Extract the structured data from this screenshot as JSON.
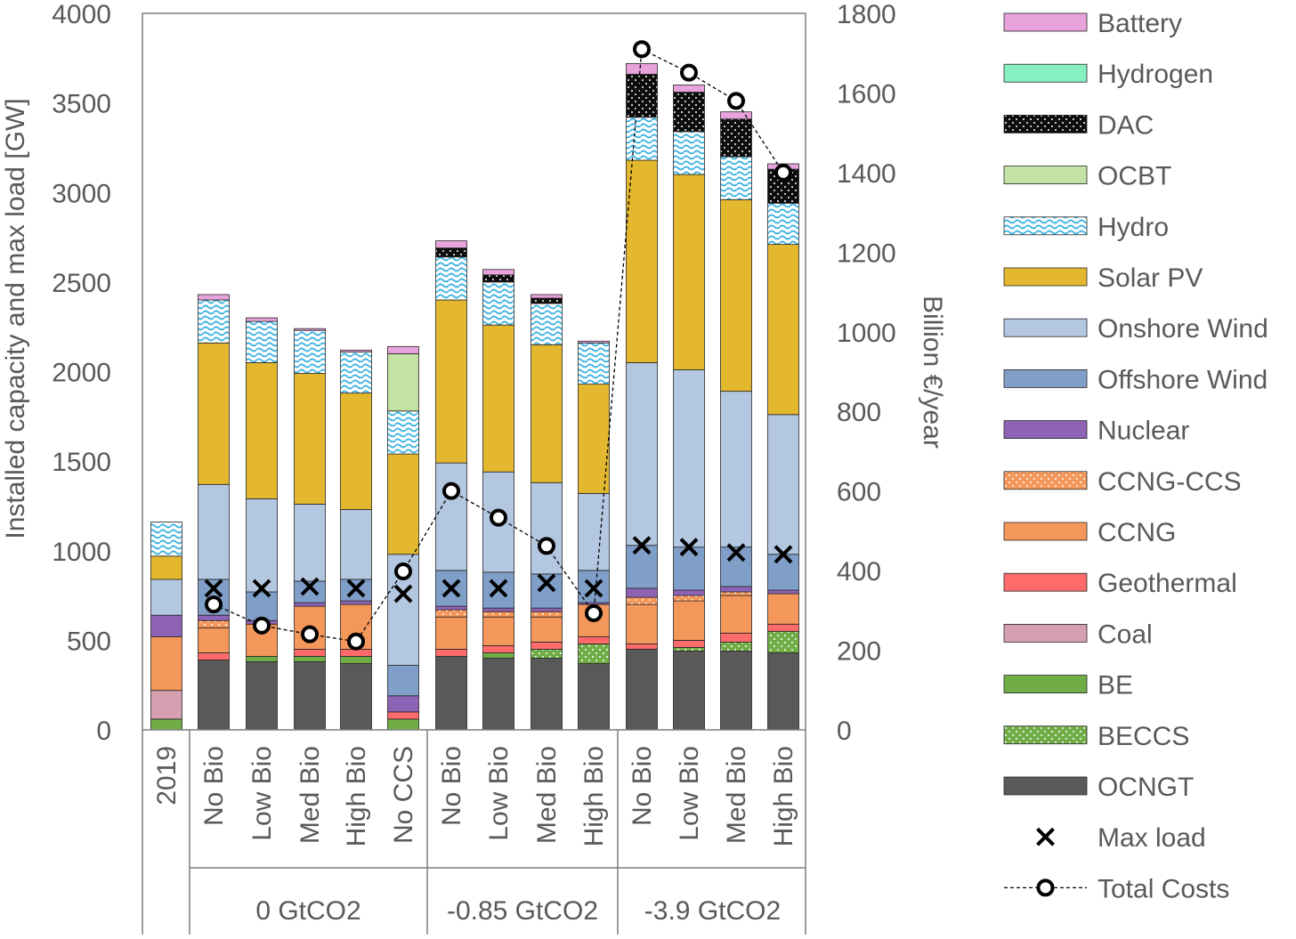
{
  "chart_data": {
    "type": "bar",
    "subtype": "stacked-bar-with-line-and-markers",
    "ylabel_left": "Installed capacity and max load [GW]",
    "ylabel_right": "Billion €/year",
    "ylim_left": [
      0,
      4000
    ],
    "ylim_right": [
      0,
      1800
    ],
    "yticks_left": [
      "0",
      "500",
      "1000",
      "1500",
      "2000",
      "2500",
      "3000",
      "3500",
      "4000"
    ],
    "yticks_right": [
      "0",
      "200",
      "400",
      "600",
      "800",
      "1000",
      "1200",
      "1400",
      "1600",
      "1800"
    ],
    "grid": false,
    "legend_position": "right",
    "categories": [
      "2019",
      "No Bio",
      "Low Bio",
      "Med Bio",
      "High Bio",
      "No CCS",
      "No Bio",
      "Low Bio",
      "Med Bio",
      "High Bio",
      "No Bio",
      "Low Bio",
      "Med Bio",
      "High Bio"
    ],
    "groups": [
      {
        "label": "0 GtCO2",
        "start": 1,
        "end": 5
      },
      {
        "label": "-0.85 GtCO2",
        "start": 6,
        "end": 9
      },
      {
        "label": "-3.9 GtCO2",
        "start": 10,
        "end": 13
      }
    ],
    "series": [
      {
        "name": "OCNGT",
        "color": "#595959",
        "pattern": "solid",
        "values": [
          0,
          390,
          380,
          380,
          370,
          0,
          410,
          400,
          400,
          370,
          450,
          440,
          440,
          430
        ]
      },
      {
        "name": "BECCS",
        "color": "#70ad47",
        "pattern": "dots",
        "values": [
          0,
          0,
          0,
          0,
          0,
          0,
          0,
          0,
          50,
          110,
          0,
          20,
          50,
          120
        ]
      },
      {
        "name": "BE",
        "color": "#70ad47",
        "pattern": "solid",
        "values": [
          60,
          0,
          30,
          30,
          40,
          60,
          0,
          30,
          0,
          0,
          0,
          0,
          0,
          0
        ]
      },
      {
        "name": "Coal",
        "color": "#d5a0b0",
        "pattern": "solid",
        "values": [
          160,
          0,
          0,
          0,
          0,
          0,
          0,
          0,
          0,
          0,
          0,
          0,
          0,
          0
        ]
      },
      {
        "name": "Geothermal",
        "color": "#ff6b6b",
        "pattern": "solid",
        "values": [
          0,
          40,
          0,
          40,
          40,
          40,
          40,
          40,
          40,
          40,
          30,
          40,
          50,
          40
        ]
      },
      {
        "name": "CCNG",
        "color": "#f4975a",
        "pattern": "solid",
        "values": [
          300,
          140,
          180,
          240,
          250,
          0,
          180,
          160,
          140,
          180,
          220,
          220,
          210,
          170
        ]
      },
      {
        "name": "CCNG-CCS",
        "color": "#f4975a",
        "pattern": "dots",
        "values": [
          0,
          40,
          0,
          0,
          0,
          0,
          40,
          30,
          30,
          0,
          40,
          30,
          20,
          0
        ]
      },
      {
        "name": "Nuclear",
        "color": "#8e63b5",
        "pattern": "solid",
        "values": [
          120,
          30,
          20,
          20,
          20,
          90,
          20,
          20,
          20,
          10,
          50,
          30,
          30,
          20
        ]
      },
      {
        "name": "Offshore Wind",
        "color": "#7f9fc8",
        "pattern": "solid",
        "values": [
          0,
          200,
          160,
          120,
          120,
          170,
          200,
          200,
          190,
          180,
          240,
          240,
          220,
          200
        ]
      },
      {
        "name": "Onshore Wind",
        "color": "#b4c7e0",
        "pattern": "solid",
        "values": [
          200,
          530,
          520,
          430,
          390,
          620,
          600,
          560,
          510,
          430,
          1020,
          990,
          870,
          780
        ]
      },
      {
        "name": "Solar PV",
        "color": "#e4b82e",
        "pattern": "solid",
        "values": [
          130,
          790,
          760,
          730,
          650,
          560,
          910,
          820,
          770,
          610,
          1130,
          1090,
          1070,
          950
        ]
      },
      {
        "name": "Hydro",
        "color": "#5bc0e8",
        "pattern": "waves",
        "values": [
          190,
          240,
          230,
          240,
          230,
          240,
          240,
          240,
          230,
          230,
          240,
          240,
          240,
          230
        ]
      },
      {
        "name": "OCBT",
        "color": "#c5e2a5",
        "pattern": "solid",
        "values": [
          0,
          0,
          0,
          0,
          0,
          320,
          0,
          0,
          0,
          0,
          0,
          0,
          0,
          0
        ]
      },
      {
        "name": "DAC",
        "color": "#111111",
        "pattern": "dots",
        "values": [
          0,
          0,
          0,
          0,
          0,
          0,
          50,
          40,
          30,
          0,
          240,
          220,
          210,
          190
        ]
      },
      {
        "name": "Hydrogen",
        "color": "#86f0c0",
        "pattern": "solid",
        "values": [
          0,
          0,
          0,
          0,
          0,
          0,
          0,
          0,
          0,
          0,
          0,
          0,
          0,
          0
        ]
      },
      {
        "name": "Battery",
        "color": "#e8a3dc",
        "pattern": "solid",
        "values": [
          0,
          30,
          20,
          10,
          10,
          40,
          40,
          30,
          20,
          10,
          60,
          40,
          40,
          30
        ]
      }
    ],
    "max_load": {
      "name": "Max load",
      "values": [
        null,
        790,
        790,
        800,
        790,
        760,
        790,
        790,
        820,
        790,
        1030,
        1020,
        990,
        980
      ]
    },
    "total_costs": {
      "name": "Total Costs",
      "axis": "right",
      "values": [
        null,
        315,
        262,
        240,
        222,
        398,
        600,
        533,
        462,
        293,
        1710,
        1651,
        1580,
        1400
      ]
    },
    "legend": [
      "Battery",
      "Hydrogen",
      "DAC",
      "OCBT",
      "Hydro",
      "Solar PV",
      "Onshore Wind",
      "Offshore Wind",
      "Nuclear",
      "CCNG-CCS",
      "CCNG",
      "Geothermal",
      "Coal",
      "BE",
      "BECCS",
      "OCNGT",
      "Max load",
      "Total Costs"
    ]
  }
}
